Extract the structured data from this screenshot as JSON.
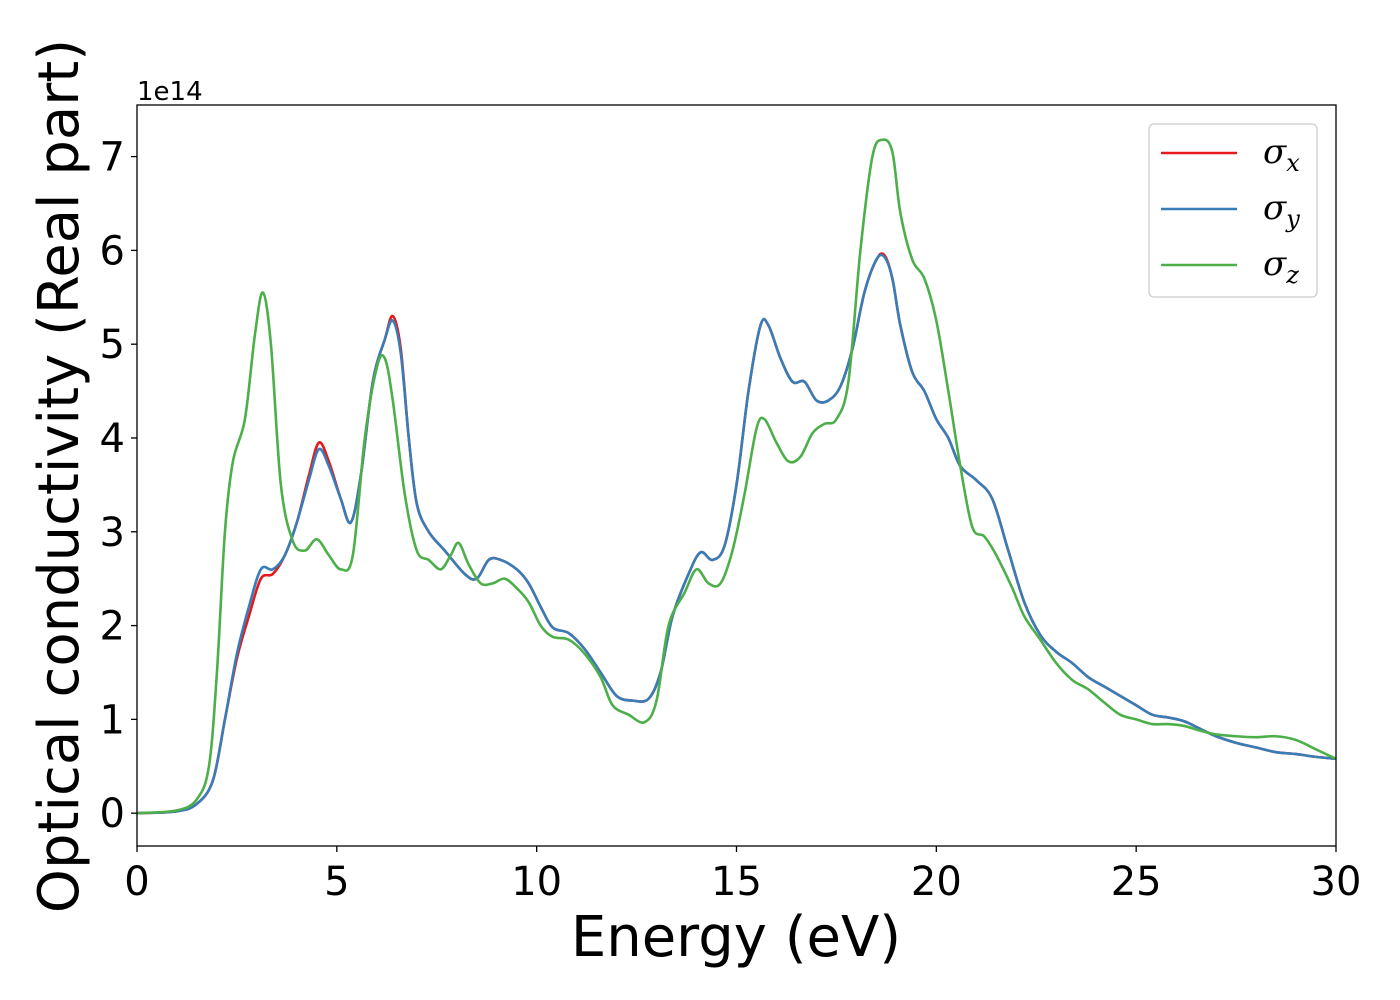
{
  "chart_data": {
    "type": "line",
    "xlabel": "Energy (eV)",
    "ylabel": "Optical conductivity (Real part)",
    "y_offset_label": "1e14",
    "xlim": [
      0,
      30
    ],
    "ylim": [
      -0.35,
      7.55
    ],
    "y_scale": 100000000000000.0,
    "x_ticks": [
      0,
      5,
      10,
      15,
      20,
      25,
      30
    ],
    "x_tick_labels": [
      "0",
      "5",
      "10",
      "15",
      "20",
      "25",
      "30"
    ],
    "y_ticks": [
      0,
      1,
      2,
      3,
      4,
      5,
      6,
      7
    ],
    "y_tick_labels": [
      "0",
      "1",
      "2",
      "3",
      "4",
      "5",
      "6",
      "7"
    ],
    "grid": false,
    "legend_position": "top-right",
    "series": [
      {
        "name": "σx",
        "symbol": "σ",
        "subscript": "x",
        "color": "#e41a1c",
        "points": [
          [
            0,
            0
          ],
          [
            1,
            0.02
          ],
          [
            1.5,
            0.1
          ],
          [
            1.9,
            0.35
          ],
          [
            2.2,
            1.0
          ],
          [
            2.5,
            1.65
          ],
          [
            2.8,
            2.1
          ],
          [
            3.1,
            2.5
          ],
          [
            3.4,
            2.55
          ],
          [
            3.7,
            2.75
          ],
          [
            4.0,
            3.1
          ],
          [
            4.3,
            3.6
          ],
          [
            4.55,
            3.95
          ],
          [
            4.8,
            3.75
          ],
          [
            5.1,
            3.35
          ],
          [
            5.35,
            3.1
          ],
          [
            5.6,
            3.6
          ],
          [
            5.9,
            4.6
          ],
          [
            6.2,
            5.05
          ],
          [
            6.4,
            5.3
          ],
          [
            6.6,
            4.95
          ],
          [
            6.8,
            4.0
          ],
          [
            7.0,
            3.3
          ],
          [
            7.3,
            3.0
          ],
          [
            7.7,
            2.8
          ],
          [
            8.2,
            2.55
          ],
          [
            8.5,
            2.5
          ],
          [
            8.8,
            2.7
          ],
          [
            9.1,
            2.7
          ],
          [
            9.5,
            2.6
          ],
          [
            9.8,
            2.45
          ],
          [
            10.1,
            2.2
          ],
          [
            10.4,
            1.98
          ],
          [
            10.8,
            1.92
          ],
          [
            11.2,
            1.75
          ],
          [
            11.6,
            1.5
          ],
          [
            12.0,
            1.25
          ],
          [
            12.4,
            1.2
          ],
          [
            12.8,
            1.22
          ],
          [
            13.1,
            1.5
          ],
          [
            13.4,
            2.1
          ],
          [
            13.8,
            2.55
          ],
          [
            14.1,
            2.78
          ],
          [
            14.4,
            2.7
          ],
          [
            14.7,
            2.85
          ],
          [
            15.0,
            3.5
          ],
          [
            15.3,
            4.5
          ],
          [
            15.6,
            5.2
          ],
          [
            15.8,
            5.2
          ],
          [
            16.1,
            4.85
          ],
          [
            16.4,
            4.6
          ],
          [
            16.7,
            4.6
          ],
          [
            17.0,
            4.4
          ],
          [
            17.3,
            4.4
          ],
          [
            17.6,
            4.55
          ],
          [
            17.9,
            4.95
          ],
          [
            18.2,
            5.55
          ],
          [
            18.5,
            5.9
          ],
          [
            18.7,
            5.95
          ],
          [
            18.9,
            5.7
          ],
          [
            19.1,
            5.2
          ],
          [
            19.4,
            4.7
          ],
          [
            19.7,
            4.5
          ],
          [
            20.0,
            4.2
          ],
          [
            20.3,
            4.0
          ],
          [
            20.6,
            3.7
          ],
          [
            21.0,
            3.55
          ],
          [
            21.4,
            3.35
          ],
          [
            21.8,
            2.8
          ],
          [
            22.2,
            2.25
          ],
          [
            22.6,
            1.9
          ],
          [
            23.0,
            1.72
          ],
          [
            23.4,
            1.6
          ],
          [
            23.8,
            1.45
          ],
          [
            24.2,
            1.35
          ],
          [
            24.6,
            1.25
          ],
          [
            25.0,
            1.15
          ],
          [
            25.4,
            1.05
          ],
          [
            25.8,
            1.02
          ],
          [
            26.2,
            0.98
          ],
          [
            26.6,
            0.9
          ],
          [
            27.0,
            0.82
          ],
          [
            27.5,
            0.75
          ],
          [
            28.0,
            0.7
          ],
          [
            28.5,
            0.65
          ],
          [
            29.0,
            0.63
          ],
          [
            29.5,
            0.6
          ],
          [
            30,
            0.58
          ]
        ]
      },
      {
        "name": "σy",
        "symbol": "σ",
        "subscript": "y",
        "color": "#377eb8",
        "points": [
          [
            0,
            0
          ],
          [
            1,
            0.02
          ],
          [
            1.5,
            0.1
          ],
          [
            1.9,
            0.35
          ],
          [
            2.2,
            1.0
          ],
          [
            2.5,
            1.7
          ],
          [
            2.8,
            2.2
          ],
          [
            3.1,
            2.6
          ],
          [
            3.4,
            2.6
          ],
          [
            3.7,
            2.75
          ],
          [
            4.0,
            3.1
          ],
          [
            4.3,
            3.55
          ],
          [
            4.55,
            3.88
          ],
          [
            4.8,
            3.7
          ],
          [
            5.1,
            3.35
          ],
          [
            5.35,
            3.1
          ],
          [
            5.6,
            3.6
          ],
          [
            5.9,
            4.6
          ],
          [
            6.2,
            5.05
          ],
          [
            6.4,
            5.25
          ],
          [
            6.6,
            4.9
          ],
          [
            6.8,
            4.0
          ],
          [
            7.0,
            3.3
          ],
          [
            7.3,
            3.0
          ],
          [
            7.7,
            2.8
          ],
          [
            8.2,
            2.55
          ],
          [
            8.5,
            2.5
          ],
          [
            8.8,
            2.7
          ],
          [
            9.1,
            2.7
          ],
          [
            9.5,
            2.6
          ],
          [
            9.8,
            2.45
          ],
          [
            10.1,
            2.2
          ],
          [
            10.4,
            1.98
          ],
          [
            10.8,
            1.92
          ],
          [
            11.2,
            1.75
          ],
          [
            11.6,
            1.5
          ],
          [
            12.0,
            1.25
          ],
          [
            12.4,
            1.2
          ],
          [
            12.8,
            1.22
          ],
          [
            13.1,
            1.5
          ],
          [
            13.4,
            2.1
          ],
          [
            13.8,
            2.55
          ],
          [
            14.1,
            2.78
          ],
          [
            14.4,
            2.7
          ],
          [
            14.7,
            2.85
          ],
          [
            15.0,
            3.5
          ],
          [
            15.3,
            4.5
          ],
          [
            15.6,
            5.2
          ],
          [
            15.8,
            5.2
          ],
          [
            16.1,
            4.85
          ],
          [
            16.4,
            4.6
          ],
          [
            16.7,
            4.6
          ],
          [
            17.0,
            4.4
          ],
          [
            17.3,
            4.4
          ],
          [
            17.6,
            4.55
          ],
          [
            17.9,
            4.95
          ],
          [
            18.2,
            5.55
          ],
          [
            18.5,
            5.9
          ],
          [
            18.7,
            5.93
          ],
          [
            18.9,
            5.7
          ],
          [
            19.1,
            5.2
          ],
          [
            19.4,
            4.7
          ],
          [
            19.7,
            4.5
          ],
          [
            20.0,
            4.2
          ],
          [
            20.3,
            4.0
          ],
          [
            20.6,
            3.7
          ],
          [
            21.0,
            3.55
          ],
          [
            21.4,
            3.35
          ],
          [
            21.8,
            2.8
          ],
          [
            22.2,
            2.25
          ],
          [
            22.6,
            1.9
          ],
          [
            23.0,
            1.72
          ],
          [
            23.4,
            1.6
          ],
          [
            23.8,
            1.45
          ],
          [
            24.2,
            1.35
          ],
          [
            24.6,
            1.25
          ],
          [
            25.0,
            1.15
          ],
          [
            25.4,
            1.05
          ],
          [
            25.8,
            1.02
          ],
          [
            26.2,
            0.98
          ],
          [
            26.6,
            0.9
          ],
          [
            27.0,
            0.82
          ],
          [
            27.5,
            0.75
          ],
          [
            28.0,
            0.7
          ],
          [
            28.5,
            0.65
          ],
          [
            29.0,
            0.63
          ],
          [
            29.5,
            0.6
          ],
          [
            30,
            0.58
          ]
        ]
      },
      {
        "name": "σz",
        "symbol": "σ",
        "subscript": "z",
        "color": "#4daf4a",
        "points": [
          [
            0,
            0
          ],
          [
            1,
            0.03
          ],
          [
            1.5,
            0.15
          ],
          [
            1.8,
            0.5
          ],
          [
            2.0,
            1.5
          ],
          [
            2.2,
            3.0
          ],
          [
            2.4,
            3.75
          ],
          [
            2.7,
            4.2
          ],
          [
            2.95,
            5.1
          ],
          [
            3.15,
            5.55
          ],
          [
            3.35,
            5.0
          ],
          [
            3.6,
            3.5
          ],
          [
            3.9,
            2.9
          ],
          [
            4.2,
            2.8
          ],
          [
            4.5,
            2.92
          ],
          [
            4.8,
            2.75
          ],
          [
            5.1,
            2.6
          ],
          [
            5.4,
            2.75
          ],
          [
            5.7,
            4.0
          ],
          [
            6.0,
            4.75
          ],
          [
            6.2,
            4.85
          ],
          [
            6.4,
            4.4
          ],
          [
            6.7,
            3.4
          ],
          [
            7.0,
            2.8
          ],
          [
            7.3,
            2.7
          ],
          [
            7.6,
            2.6
          ],
          [
            7.85,
            2.75
          ],
          [
            8.05,
            2.88
          ],
          [
            8.3,
            2.65
          ],
          [
            8.6,
            2.45
          ],
          [
            8.9,
            2.45
          ],
          [
            9.2,
            2.5
          ],
          [
            9.5,
            2.4
          ],
          [
            9.8,
            2.25
          ],
          [
            10.1,
            2.0
          ],
          [
            10.4,
            1.88
          ],
          [
            10.8,
            1.85
          ],
          [
            11.2,
            1.7
          ],
          [
            11.6,
            1.45
          ],
          [
            11.9,
            1.15
          ],
          [
            12.3,
            1.05
          ],
          [
            12.7,
            0.97
          ],
          [
            13.0,
            1.2
          ],
          [
            13.3,
            2.0
          ],
          [
            13.7,
            2.35
          ],
          [
            14.0,
            2.6
          ],
          [
            14.3,
            2.45
          ],
          [
            14.6,
            2.45
          ],
          [
            14.9,
            2.8
          ],
          [
            15.2,
            3.4
          ],
          [
            15.5,
            4.1
          ],
          [
            15.7,
            4.2
          ],
          [
            16.0,
            3.95
          ],
          [
            16.3,
            3.75
          ],
          [
            16.6,
            3.8
          ],
          [
            16.9,
            4.05
          ],
          [
            17.2,
            4.15
          ],
          [
            17.5,
            4.2
          ],
          [
            17.8,
            4.6
          ],
          [
            18.1,
            6.0
          ],
          [
            18.4,
            7.0
          ],
          [
            18.65,
            7.18
          ],
          [
            18.9,
            7.05
          ],
          [
            19.1,
            6.4
          ],
          [
            19.4,
            5.9
          ],
          [
            19.7,
            5.7
          ],
          [
            20.0,
            5.25
          ],
          [
            20.3,
            4.5
          ],
          [
            20.6,
            3.7
          ],
          [
            20.9,
            3.05
          ],
          [
            21.2,
            2.95
          ],
          [
            21.5,
            2.75
          ],
          [
            21.9,
            2.4
          ],
          [
            22.2,
            2.1
          ],
          [
            22.6,
            1.85
          ],
          [
            23.0,
            1.6
          ],
          [
            23.4,
            1.42
          ],
          [
            23.8,
            1.32
          ],
          [
            24.2,
            1.18
          ],
          [
            24.6,
            1.05
          ],
          [
            25.0,
            1.0
          ],
          [
            25.4,
            0.95
          ],
          [
            25.8,
            0.95
          ],
          [
            26.2,
            0.93
          ],
          [
            26.6,
            0.88
          ],
          [
            27.0,
            0.84
          ],
          [
            27.5,
            0.82
          ],
          [
            28.0,
            0.81
          ],
          [
            28.5,
            0.82
          ],
          [
            29.0,
            0.78
          ],
          [
            29.5,
            0.68
          ],
          [
            30,
            0.58
          ]
        ]
      }
    ]
  }
}
